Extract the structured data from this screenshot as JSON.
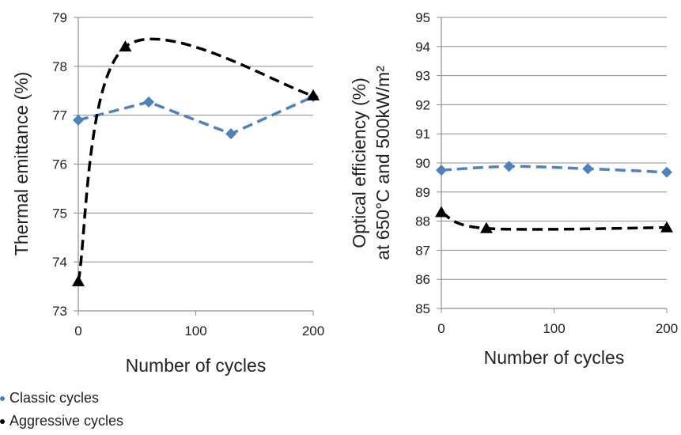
{
  "colors": {
    "classic": "#4f81bd",
    "aggressive": "#000000",
    "grid": "#8c8c8c",
    "axis": "#8c8c8c"
  },
  "legend": [
    {
      "label": "Classic cycles",
      "color": "#4f81bd"
    },
    {
      "label": "Aggressive cycles",
      "color": "#000000"
    }
  ],
  "chart_data": [
    {
      "type": "line",
      "xlabel": "Number of cycles",
      "ylabel": "Thermal emittance (%)",
      "xlim": [
        0,
        200
      ],
      "ylim": [
        73,
        79
      ],
      "xticks": [
        "0",
        "100",
        "200"
      ],
      "yticks": [
        "73",
        "74",
        "75",
        "76",
        "77",
        "78",
        "79"
      ],
      "grid": true,
      "legend_position": "bottom-left",
      "series": [
        {
          "name": "Classic cycles",
          "marker": "diamond",
          "style": "dashed",
          "smooth": false,
          "x": [
            0,
            60,
            130,
            200
          ],
          "y": [
            76.9,
            77.27,
            76.62,
            77.38
          ]
        },
        {
          "name": "Aggressive cycles",
          "marker": "triangle",
          "style": "dashed",
          "smooth": true,
          "x": [
            0,
            40,
            200
          ],
          "y": [
            73.6,
            78.4,
            77.4
          ]
        }
      ]
    },
    {
      "type": "line",
      "xlabel": "Number of cycles",
      "ylabel_lines": [
        "Optical efficiency (%)",
        "at 650°C and 500kW/m²"
      ],
      "xlim": [
        0,
        200
      ],
      "ylim": [
        85,
        95
      ],
      "xticks": [
        "0",
        "100",
        "200"
      ],
      "yticks": [
        "85",
        "86",
        "87",
        "88",
        "89",
        "90",
        "91",
        "92",
        "93",
        "94",
        "95"
      ],
      "grid": true,
      "legend_position": "bottom-left",
      "series": [
        {
          "name": "Classic cycles",
          "marker": "diamond",
          "style": "dashed",
          "smooth": true,
          "x": [
            0,
            60,
            130,
            200
          ],
          "y": [
            89.75,
            89.88,
            89.8,
            89.68
          ]
        },
        {
          "name": "Aggressive cycles",
          "marker": "triangle",
          "style": "dashed",
          "smooth": true,
          "x": [
            0,
            40,
            200
          ],
          "y": [
            88.3,
            87.75,
            87.78
          ]
        }
      ]
    }
  ]
}
